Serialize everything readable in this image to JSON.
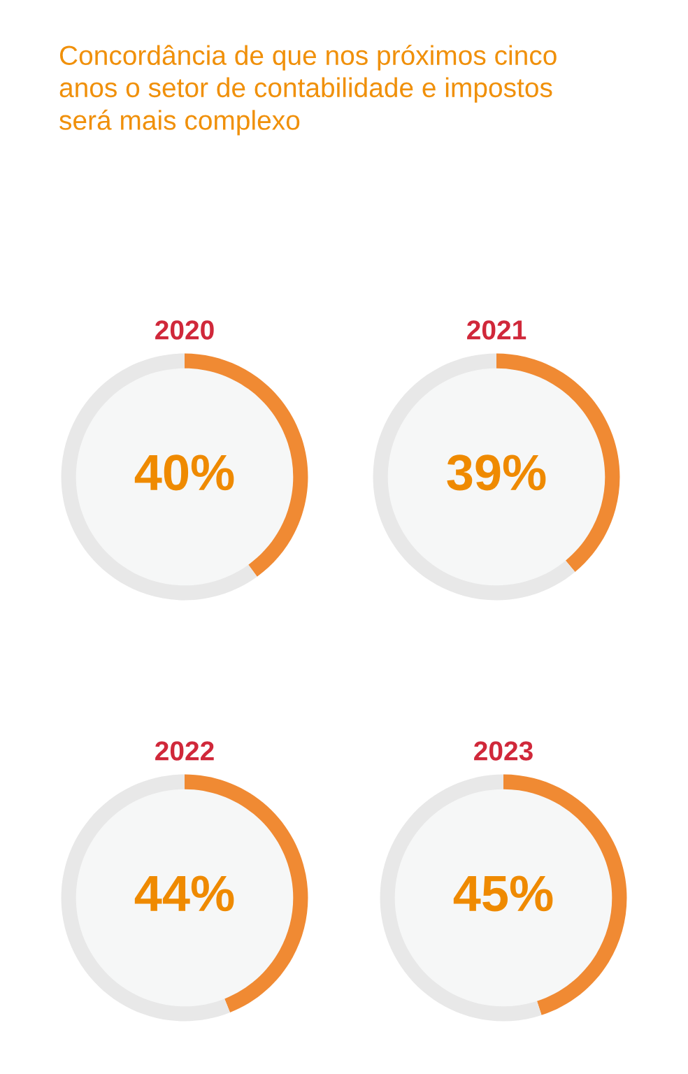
{
  "chart_data": [
    {
      "type": "donut",
      "title": "2020",
      "categories": [
        null,
        null
      ],
      "values": [
        40,
        60
      ],
      "colors": [
        "#f08a33",
        "#e8e8e8"
      ],
      "value_labels": [
        "40%",
        null
      ],
      "annotations": [
        "Concordância de que nos próximos cinco\nanos o setor de contabilidade e impostos\nserá mais complexo"
      ]
    },
    {
      "type": "donut",
      "title": "2021",
      "categories": [
        null,
        null
      ],
      "values": [
        39,
        61
      ],
      "colors": [
        "#f08a33",
        "#e8e8e8"
      ],
      "value_labels": [
        "39%",
        null
      ]
    },
    {
      "type": "donut",
      "title": "2022",
      "categories": [
        null,
        null
      ],
      "values": [
        44,
        56
      ],
      "colors": [
        "#f08a33",
        "#e8e8e8"
      ],
      "value_labels": [
        "44%",
        null
      ]
    },
    {
      "type": "donut",
      "title": "2023",
      "categories": [
        null,
        null
      ],
      "values": [
        45,
        55
      ],
      "colors": [
        "#f08a33",
        "#e8e8e8"
      ],
      "value_labels": [
        "45%",
        null
      ]
    }
  ]
}
